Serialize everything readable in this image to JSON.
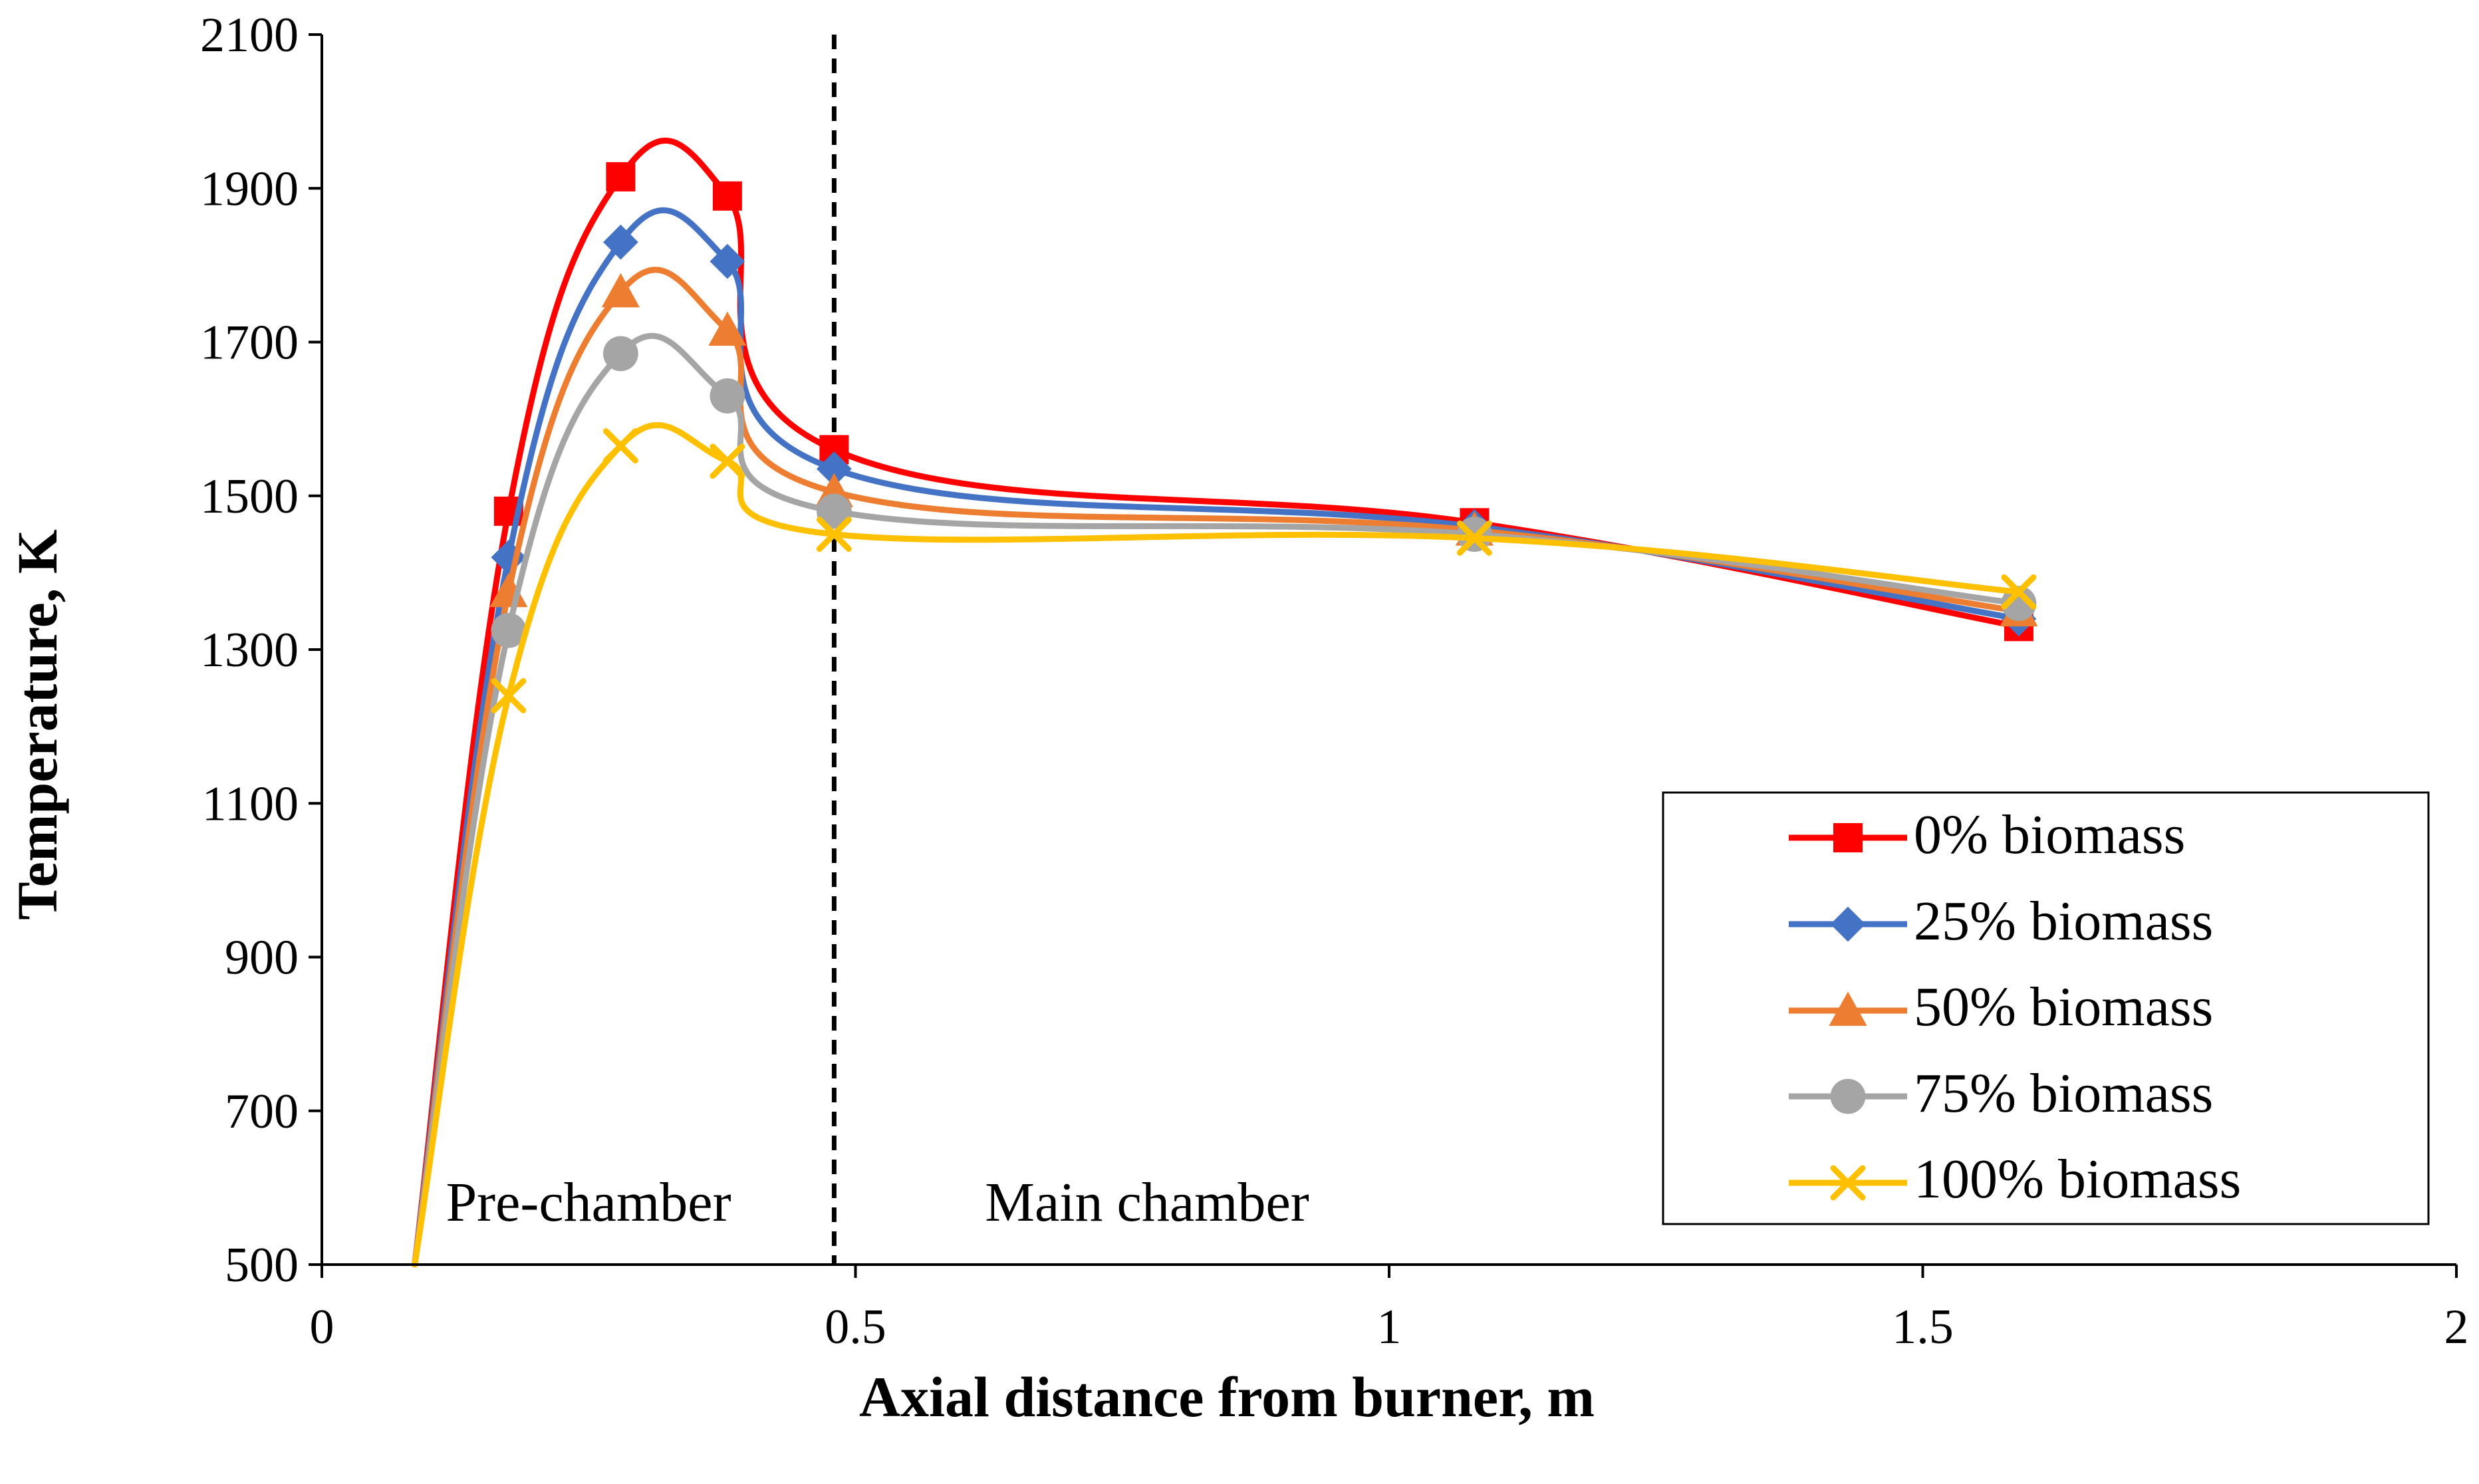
{
  "chart_data": {
    "type": "line",
    "title": "",
    "xlabel": "Axial distance from burner, m",
    "ylabel": "Temperature, K",
    "xlim": [
      0,
      2
    ],
    "ylim": [
      500,
      2100
    ],
    "xticks": [
      0,
      0.5,
      1,
      1.5,
      2
    ],
    "xtick_labels": [
      "0",
      "0.5",
      "1",
      "1.5",
      "2"
    ],
    "yticks": [
      500,
      700,
      900,
      1100,
      1300,
      1500,
      1700,
      1900,
      2100
    ],
    "ytick_labels": [
      "500",
      "700",
      "900",
      "1100",
      "1300",
      "1500",
      "1700",
      "1900",
      "2100"
    ],
    "grid": false,
    "legend_position": "bottom-right",
    "annotations": [
      {
        "text": "Pre-chamber",
        "x": 0.27,
        "y": 585
      },
      {
        "text": "Main chamber",
        "x": 0.77,
        "y": 585
      }
    ],
    "divider": {
      "x": 0.48,
      "style": "dashed"
    },
    "series": [
      {
        "name": "0% biomass",
        "color": "#ff0000",
        "marker": "square",
        "x": [
          0.087,
          0.175,
          0.28,
          0.38,
          0.48,
          1.08,
          1.59
        ],
        "y": [
          500,
          1480,
          1915,
          1890,
          1560,
          1465,
          1330
        ]
      },
      {
        "name": "25% biomass",
        "color": "#4472c4",
        "marker": "diamond",
        "x": [
          0.087,
          0.175,
          0.28,
          0.38,
          0.48,
          1.08,
          1.59
        ],
        "y": [
          500,
          1420,
          1830,
          1805,
          1535,
          1460,
          1340
        ]
      },
      {
        "name": "50% biomass",
        "color": "#ed7d31",
        "marker": "triangle",
        "x": [
          0.087,
          0.175,
          0.28,
          0.38,
          0.48,
          1.08,
          1.59
        ],
        "y": [
          500,
          1375,
          1765,
          1715,
          1505,
          1455,
          1350
        ]
      },
      {
        "name": "75% biomass",
        "color": "#a5a5a5",
        "marker": "circle",
        "x": [
          0.087,
          0.175,
          0.28,
          0.38,
          0.48,
          1.08,
          1.59
        ],
        "y": [
          500,
          1325,
          1685,
          1630,
          1480,
          1450,
          1360
        ]
      },
      {
        "name": "100% biomass",
        "color": "#ffc000",
        "marker": "x",
        "x": [
          0.087,
          0.175,
          0.28,
          0.38,
          0.48,
          1.08,
          1.59
        ],
        "y": [
          500,
          1240,
          1565,
          1545,
          1450,
          1445,
          1375
        ]
      }
    ]
  }
}
